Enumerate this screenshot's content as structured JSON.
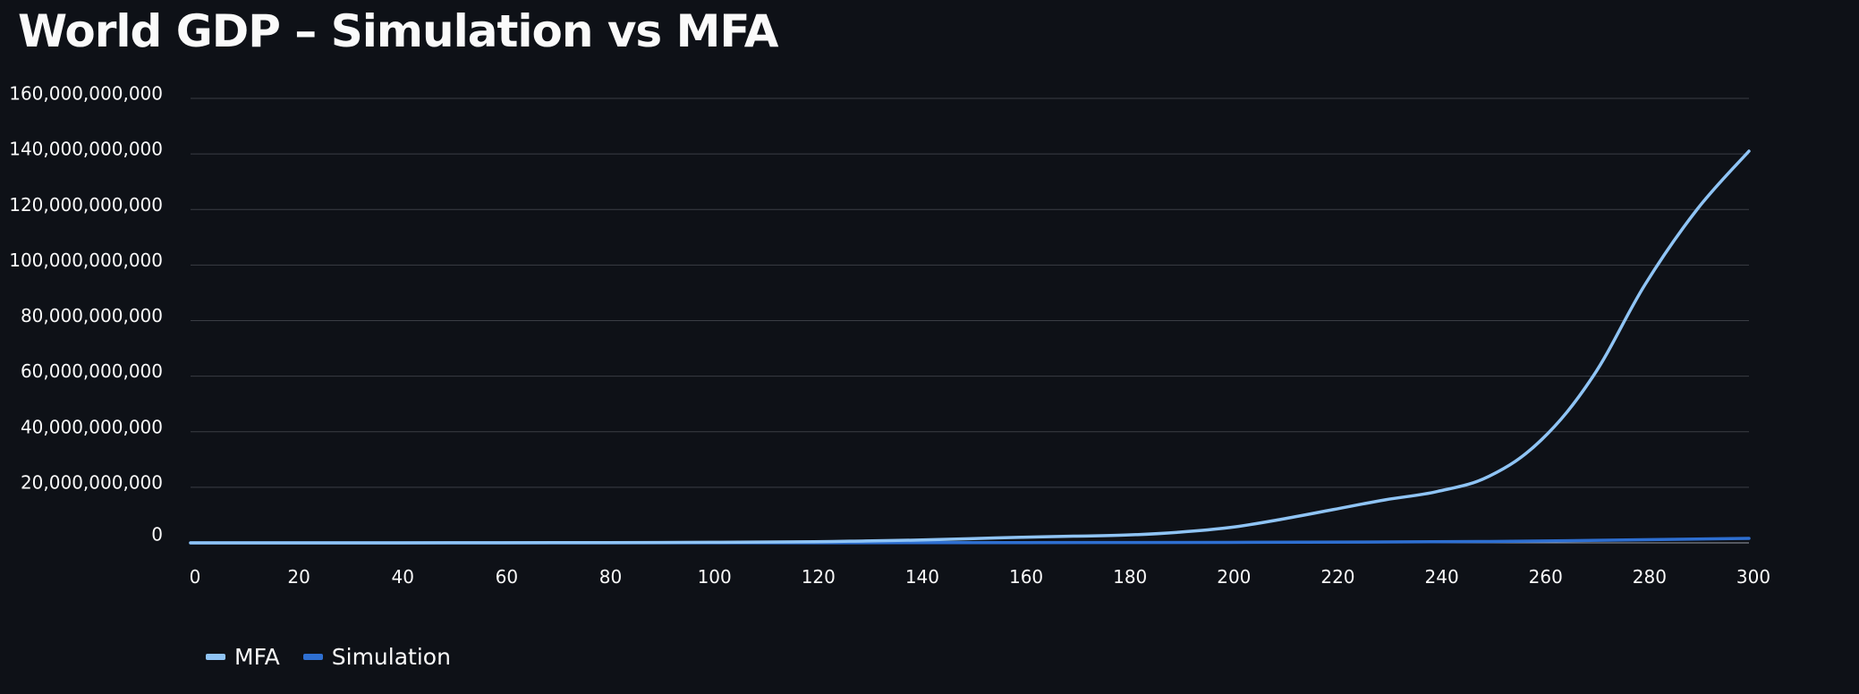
{
  "page": {
    "title": "World GDP – Simulation vs MFA"
  },
  "colors": {
    "background": "#0e1117",
    "grid": "#3a3d45",
    "text": "#fafafa",
    "mfa": "#8fc4f5",
    "simulation": "#2e6fd1"
  },
  "chart_data": {
    "type": "line",
    "title": "World GDP – Simulation vs MFA",
    "xlabel": "",
    "ylabel": "",
    "xlim": [
      0,
      300
    ],
    "ylim": [
      0,
      160000000000
    ],
    "x_ticks": [
      0,
      20,
      40,
      60,
      80,
      100,
      120,
      140,
      160,
      180,
      200,
      220,
      240,
      260,
      280,
      300
    ],
    "y_ticks": [
      0,
      20000000000,
      40000000000,
      60000000000,
      80000000000,
      100000000000,
      120000000000,
      140000000000,
      160000000000
    ],
    "grid": true,
    "legend_position": "bottom-left",
    "series": [
      {
        "name": "MFA",
        "color": "#8fc4f5",
        "x": [
          0,
          20,
          40,
          60,
          80,
          100,
          120,
          130,
          140,
          150,
          160,
          170,
          180,
          190,
          200,
          210,
          220,
          230,
          240,
          250,
          260,
          270,
          280,
          290,
          300
        ],
        "values": [
          0,
          0,
          0,
          50000000,
          100000000,
          200000000,
          400000000,
          700000000,
          1000000000,
          1500000000,
          2000000000,
          2400000000,
          2800000000,
          3800000000,
          5500000000,
          8500000000,
          12000000000,
          15500000000,
          18500000000,
          24000000000,
          37000000000,
          60000000000,
          93000000000,
          120000000000,
          141000000000
        ]
      },
      {
        "name": "Simulation",
        "color": "#2e6fd1",
        "x": [
          0,
          50,
          100,
          150,
          200,
          250,
          300
        ],
        "values": [
          0,
          0,
          30000000,
          80000000,
          180000000,
          500000000,
          1600000000
        ]
      }
    ]
  }
}
